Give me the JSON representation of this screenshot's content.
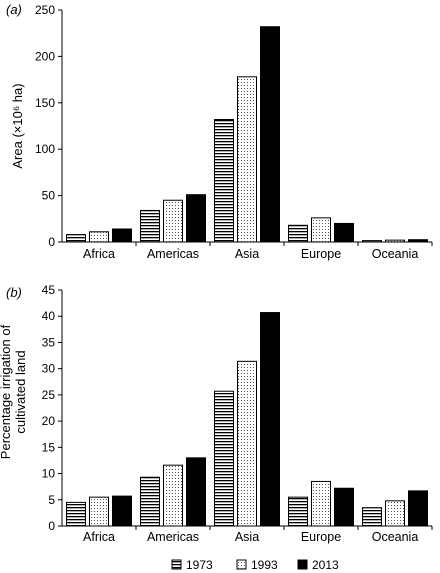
{
  "chart_data": [
    {
      "panel_label": "(a)",
      "type": "bar",
      "ylabel": "Area (×10⁶ ha)",
      "categories": [
        "Africa",
        "Americas",
        "Asia",
        "Europe",
        "Oceania"
      ],
      "ylim": [
        0,
        250
      ],
      "yticks": [
        0,
        50,
        100,
        150,
        200,
        250
      ],
      "series": [
        {
          "name": "1973",
          "values": [
            8,
            34,
            132,
            18,
            1.5
          ]
        },
        {
          "name": "1993",
          "values": [
            11,
            45,
            178,
            26,
            2
          ]
        },
        {
          "name": "2013",
          "values": [
            14,
            51,
            232,
            20,
            2.5
          ]
        }
      ]
    },
    {
      "panel_label": "(b)",
      "type": "bar",
      "ylabel_lines": [
        "Percentage irrigation of",
        "cultivated land"
      ],
      "categories": [
        "Africa",
        "Americas",
        "Asia",
        "Europe",
        "Oceania"
      ],
      "ylim": [
        0,
        45
      ],
      "yticks": [
        0,
        5,
        10,
        15,
        20,
        25,
        30,
        35,
        40,
        45
      ],
      "series": [
        {
          "name": "1973",
          "values": [
            4.5,
            9.3,
            25.7,
            5.5,
            3.5
          ]
        },
        {
          "name": "1993",
          "values": [
            5.5,
            11.6,
            31.4,
            8.5,
            4.8
          ]
        },
        {
          "name": "2013",
          "values": [
            5.7,
            13.0,
            40.7,
            7.2,
            6.7
          ]
        }
      ]
    }
  ],
  "legend": {
    "placement": "bottom-center",
    "items": [
      {
        "name": "1973",
        "pattern": "horizontal-lines"
      },
      {
        "name": "1993",
        "pattern": "dots"
      },
      {
        "name": "2013",
        "pattern": "solid-black"
      }
    ]
  },
  "colors": {
    "bar_fill_2013": "#000000",
    "axis": "#000000",
    "background": "#ffffff"
  }
}
